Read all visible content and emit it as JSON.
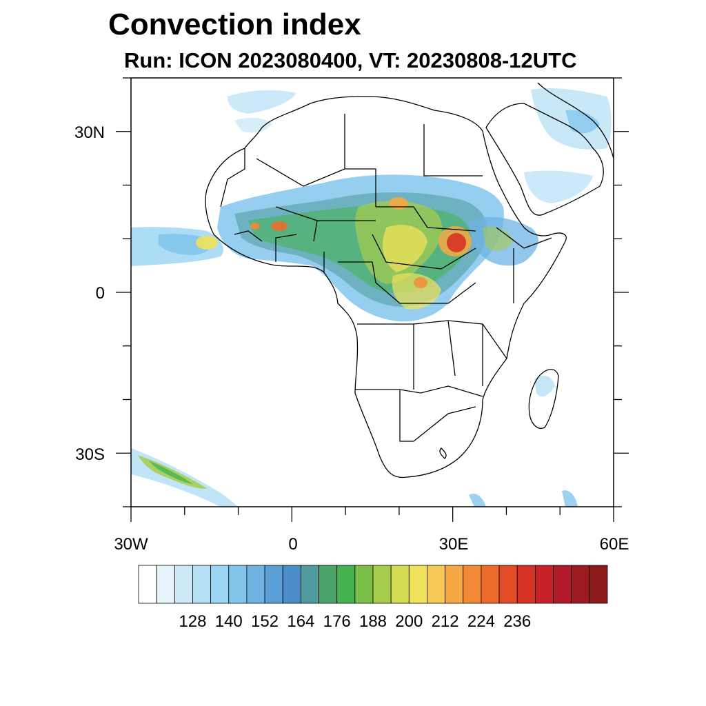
{
  "title": "Convection index",
  "subtitle": "Run: ICON 2023080400,  VT: 20230808-12UTC",
  "map": {
    "region": "Africa",
    "lon_range": [
      -30,
      60
    ],
    "lat_range": [
      -40,
      40
    ],
    "lat_tick_labels": [
      "30N",
      "0",
      "30S"
    ],
    "lon_tick_labels": [
      "30W",
      "0",
      "30E",
      "60E"
    ]
  },
  "colorbar": {
    "colors": [
      "#ffffff",
      "#e8f4fb",
      "#cde9f6",
      "#b5e0f5",
      "#9dd6f4",
      "#84c5ec",
      "#6eb3e3",
      "#5a9fd6",
      "#4a8ec8",
      "#4f9a9c",
      "#4aa56a",
      "#45b34e",
      "#7bbd49",
      "#a8cc4c",
      "#d4dc54",
      "#f0e25a",
      "#f7c955",
      "#f5a843",
      "#f28a36",
      "#ec6a2c",
      "#e24d27",
      "#d73226",
      "#c82228",
      "#b3192a",
      "#9e1a22",
      "#8a1a1a"
    ],
    "tick_labels": [
      "128",
      "140",
      "152",
      "164",
      "176",
      "188",
      "200",
      "212",
      "224",
      "236"
    ]
  }
}
